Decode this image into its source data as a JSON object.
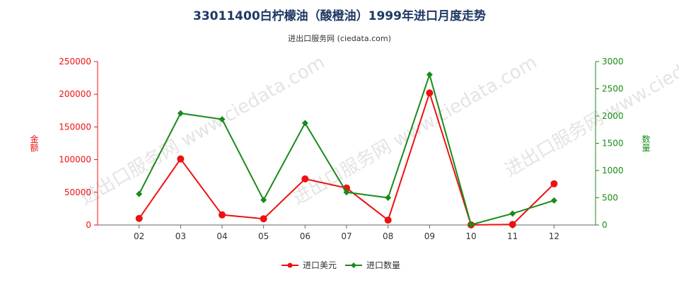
{
  "header": {
    "title": "33011400白柠檬油（酸橙油）1999年进口月度走势",
    "subtitle": "进出口服务网 (ciedata.com)"
  },
  "watermark": "进出口服务网 www.ciedata.com",
  "colors": {
    "amount": "#ee1111",
    "quantity": "#1a8a1a",
    "axis": "#666666"
  },
  "chart_data": {
    "type": "line",
    "categories": [
      "02",
      "03",
      "04",
      "05",
      "06",
      "07",
      "08",
      "09",
      "10",
      "11",
      "12"
    ],
    "ylabel_left": "金额",
    "ylabel_right": "数量",
    "ylim_left": [
      0,
      250000
    ],
    "yticks_left": [
      "0",
      "50000",
      "100000",
      "150000",
      "200000",
      "250000"
    ],
    "ylim_right": [
      0,
      3000
    ],
    "yticks_right": [
      "0",
      "500",
      "1000",
      "1500",
      "2000",
      "2500",
      "3000"
    ],
    "grid": false,
    "legend_position": "bottom-center",
    "series": [
      {
        "name": "进口美元",
        "axis": "left",
        "color": "#ee1111",
        "marker": "circle",
        "values": [
          10000,
          101000,
          15500,
          9500,
          70500,
          56500,
          7500,
          202000,
          200,
          800,
          63000
        ]
      },
      {
        "name": "进口数量",
        "axis": "right",
        "color": "#1a8a1a",
        "marker": "diamond",
        "values": [
          570,
          2050,
          1940,
          460,
          1870,
          600,
          500,
          2760,
          5,
          210,
          450
        ]
      }
    ]
  }
}
